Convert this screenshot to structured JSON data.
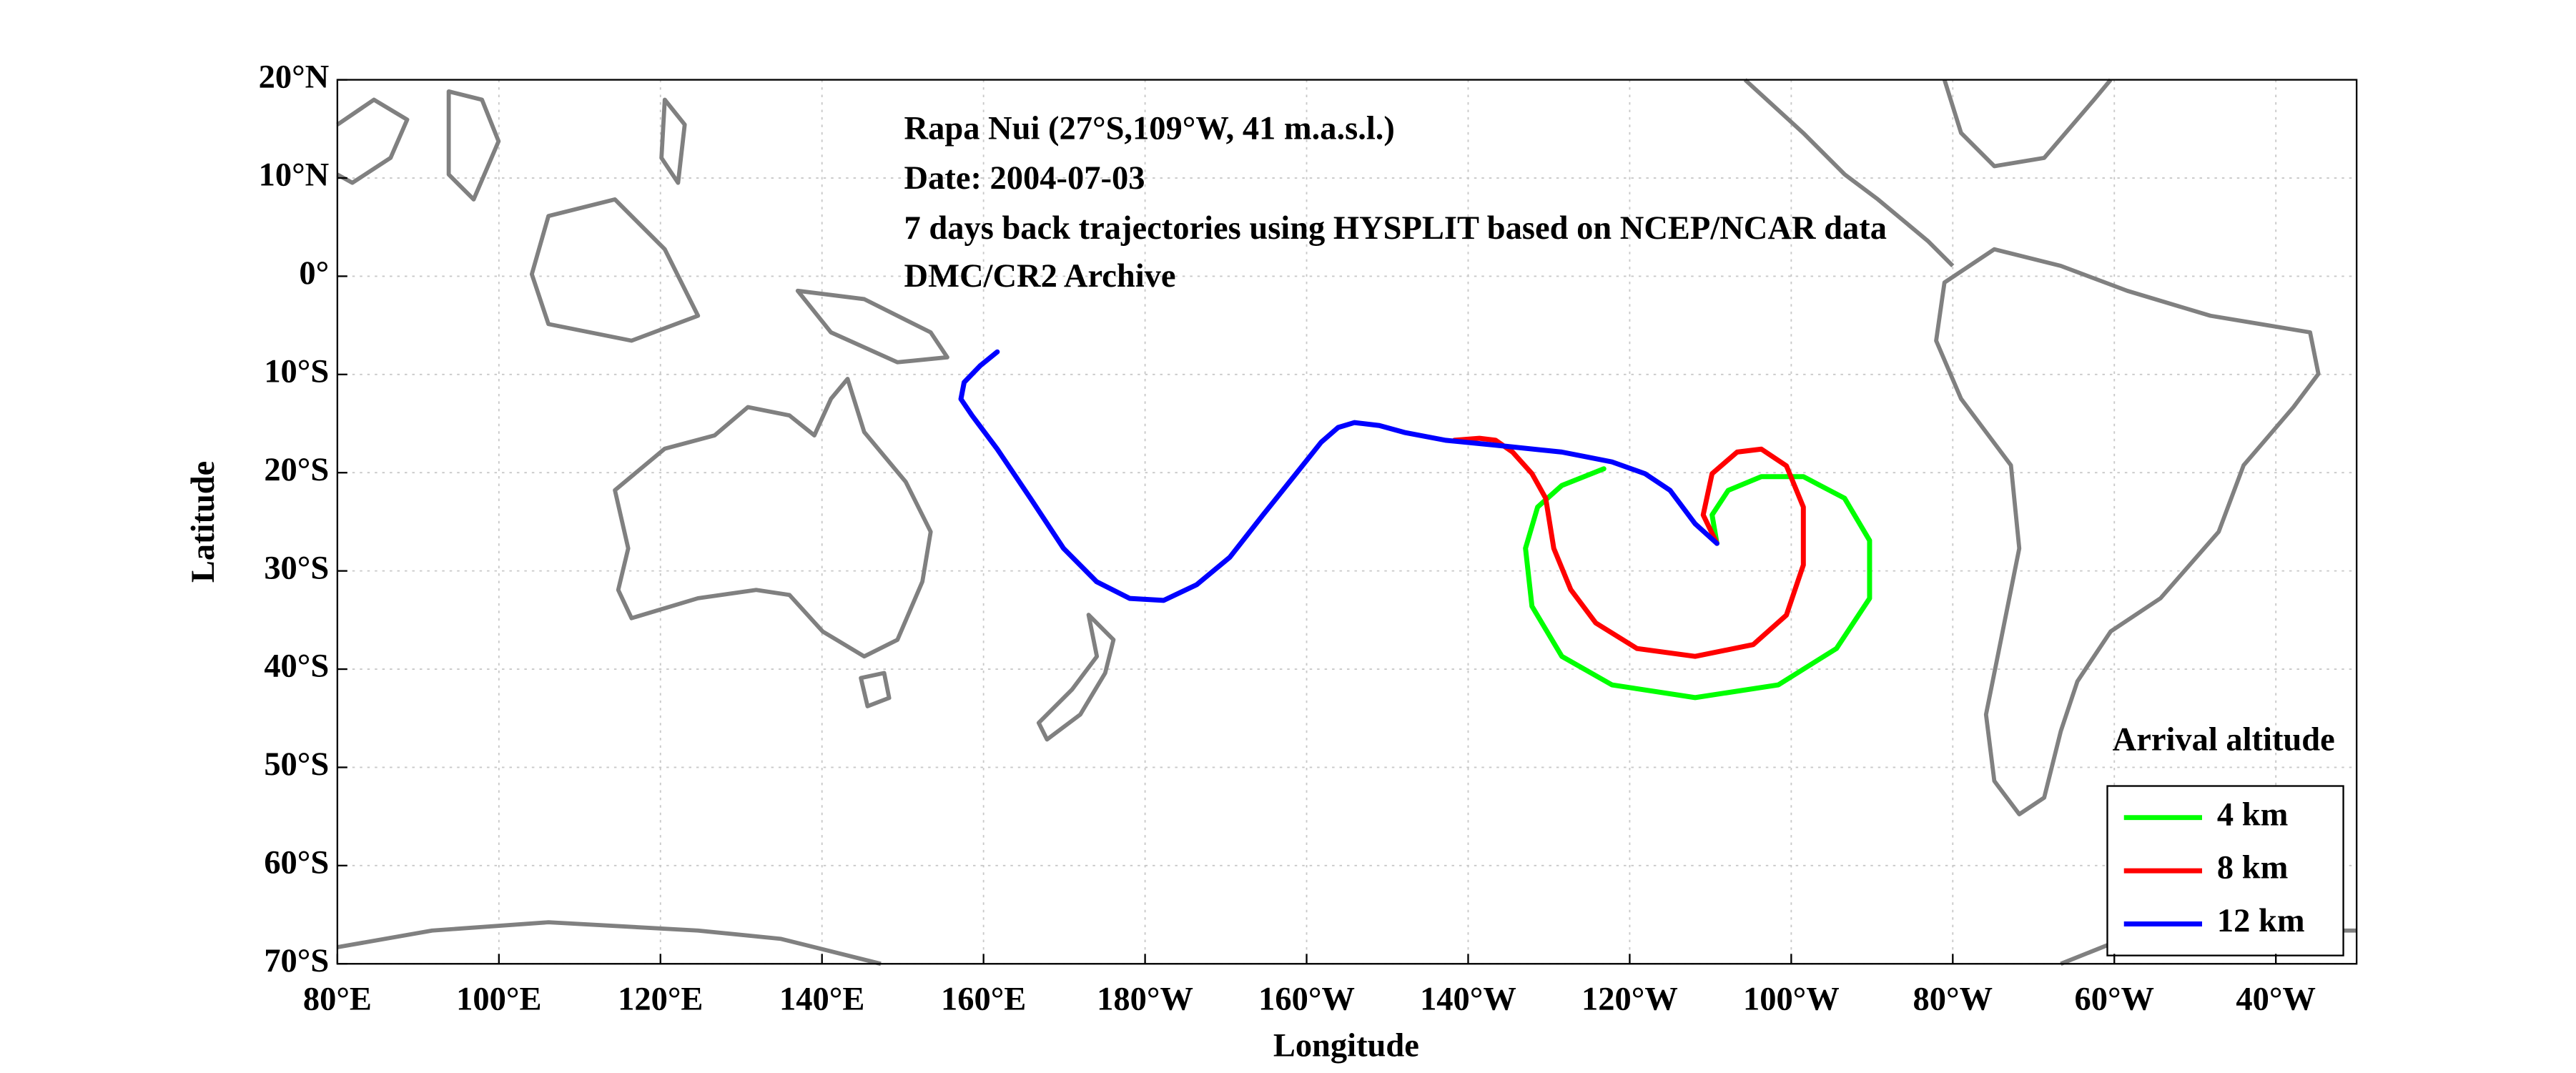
{
  "chart_data": {
    "type": "line",
    "annotations": [
      "Rapa Nui (27°S,109°W, 41 m.a.s.l.)",
      "Date: 2004-07-03",
      "7 days back trajectories using HYSPLIT based on NCEP/NCAR data",
      "DMC/CR2 Archive"
    ],
    "x_label": "Longitude",
    "y_label": "Latitude",
    "legend_title": "Arrival altitude",
    "legend": "lower right",
    "grid": true,
    "xlim": [
      80,
      330
    ],
    "ylim": [
      -70,
      20
    ],
    "xticks": [
      {
        "value": 80,
        "label": "80°E"
      },
      {
        "value": 100,
        "label": "100°E"
      },
      {
        "value": 120,
        "label": "120°E"
      },
      {
        "value": 140,
        "label": "140°E"
      },
      {
        "value": 160,
        "label": "160°E"
      },
      {
        "value": 180,
        "label": "180°W"
      },
      {
        "value": 200,
        "label": "160°W"
      },
      {
        "value": 220,
        "label": "140°W"
      },
      {
        "value": 240,
        "label": "120°W"
      },
      {
        "value": 260,
        "label": "100°W"
      },
      {
        "value": 280,
        "label": "80°W"
      },
      {
        "value": 300,
        "label": "60°W"
      },
      {
        "value": 320,
        "label": "40°W"
      }
    ],
    "yticks": [
      {
        "value": 20,
        "label": "20°N"
      },
      {
        "value": 10,
        "label": "10°N"
      },
      {
        "value": 0,
        "label": "0°"
      },
      {
        "value": -10,
        "label": "10°S"
      },
      {
        "value": -20,
        "label": "20°S"
      },
      {
        "value": -30,
        "label": "30°S"
      },
      {
        "value": -40,
        "label": "40°S"
      },
      {
        "value": -50,
        "label": "50°S"
      },
      {
        "value": -60,
        "label": "60°S"
      },
      {
        "value": -70,
        "label": "70°S"
      }
    ],
    "series": [
      {
        "name": "4 km",
        "color": "#00ff00",
        "x": [
          250.8,
          250.2,
          252.2,
          256.3,
          261.5,
          266.6,
          269.7,
          269.7,
          265.6,
          258.4,
          248.1,
          237.8,
          231.6,
          227.9,
          227.1,
          228.6,
          231.6,
          236.8
        ],
        "values": [
          -27.2,
          -24.3,
          -21.8,
          -20.4,
          -20.4,
          -22.6,
          -26.9,
          -32.8,
          -37.9,
          -41.6,
          -42.9,
          -41.6,
          -38.7,
          -33.6,
          -27.7,
          -23.5,
          -21.3,
          -19.6
        ]
      },
      {
        "name": "8 km",
        "color": "#ff0000",
        "x": [
          250.8,
          249.1,
          250.2,
          253.3,
          256.3,
          259.4,
          261.5,
          261.5,
          259.4,
          255.3,
          248.1,
          240.9,
          235.8,
          232.7,
          230.6,
          229.6,
          227.9,
          225.5,
          223.4,
          221.4,
          218.3
        ],
        "values": [
          -27.2,
          -24.3,
          -20.1,
          -17.9,
          -17.6,
          -19.3,
          -23.5,
          -29.4,
          -34.5,
          -37.5,
          -38.7,
          -37.9,
          -35.3,
          -31.9,
          -27.7,
          -22.6,
          -20.1,
          -17.9,
          -16.7,
          -16.5,
          -16.7
        ]
      },
      {
        "name": "12 km",
        "color": "#0000ff",
        "x": [
          250.8,
          248.1,
          245.0,
          241.9,
          237.8,
          231.6,
          223.4,
          217.2,
          212.1,
          209.0,
          205.9,
          203.9,
          201.8,
          198.7,
          194.6,
          190.5,
          186.4,
          182.3,
          178.1,
          174.0,
          169.9,
          165.8,
          161.7,
          158.6,
          157.2,
          157.6,
          159.6,
          161.7
        ],
        "values": [
          -27.2,
          -25.2,
          -21.8,
          -20.1,
          -18.9,
          -17.9,
          -17.2,
          -16.7,
          -15.9,
          -15.2,
          -14.9,
          -15.4,
          -16.9,
          -20.1,
          -24.3,
          -28.6,
          -31.4,
          -33.0,
          -32.8,
          -31.1,
          -27.7,
          -22.6,
          -17.6,
          -14.2,
          -12.5,
          -10.8,
          -9.1,
          -7.7
        ]
      }
    ]
  }
}
